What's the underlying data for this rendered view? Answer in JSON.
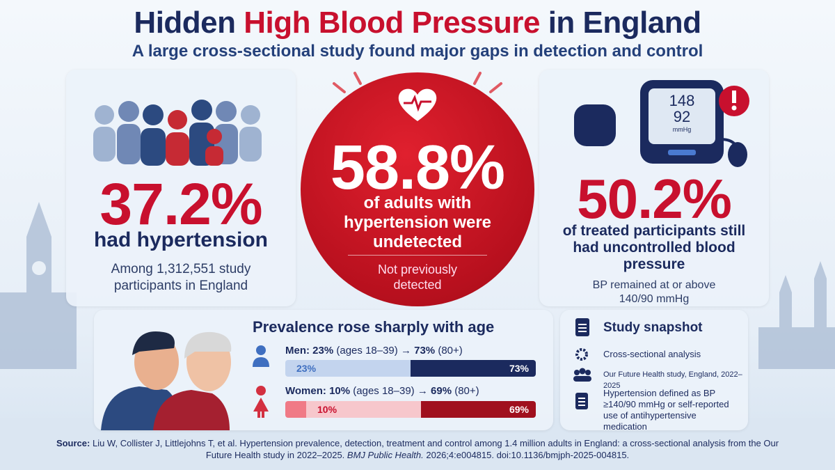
{
  "header": {
    "title": [
      "Hidden",
      "High Blood Pressure",
      "in England"
    ],
    "subtitle": "A large cross-sectional study found major gaps in detection and control"
  },
  "prevalence": {
    "value": "37.2%",
    "label": "had hypertension",
    "note": "Among 1,312,551 study participants in England"
  },
  "detection": {
    "value": "58.8%",
    "label": "of adults with hypertension were undetected",
    "note": "Not previously detected"
  },
  "control": {
    "monitor": [
      "148",
      "92",
      "mmHg"
    ],
    "value": "50.2%",
    "label": "of treated participants still had uncontrolled blood pressure",
    "note": "BP remained at or above 140/90 mmHg"
  },
  "age": {
    "title": "Prevalence rose sharply with age",
    "groups": [
      {
        "heading": [
          "Men:",
          "23%",
          "(ages 18–39)",
          "→",
          "73%",
          "(80+)"
        ],
        "bar": [
          "23%",
          "73%"
        ]
      },
      {
        "heading": [
          "Women:",
          "10%",
          "(ages 18–39)",
          "→",
          "69%",
          "(80+)"
        ],
        "bar": [
          "10%",
          "69%"
        ]
      }
    ]
  },
  "snapshot": {
    "title": "Study snapshot",
    "items": [
      "Cross-sectional analysis",
      "Our Future Health study, England, 2022–2025",
      "Hypertension defined as BP ≥140/90 mmHg or self-reported use of antihypertensive medication"
    ]
  },
  "source": [
    "Source:",
    "Liu W, Collister J, Littlejohns T, et al. Hypertension prevalence, detection, treatment and control among 1.4 million adults in England: a cross-sectional analysis from the Our Future Health study in 2022–2025.",
    "BMJ Public Health.",
    "2026;4:e004815. doi:10.1136/bmjph-2025-004815."
  ]
}
